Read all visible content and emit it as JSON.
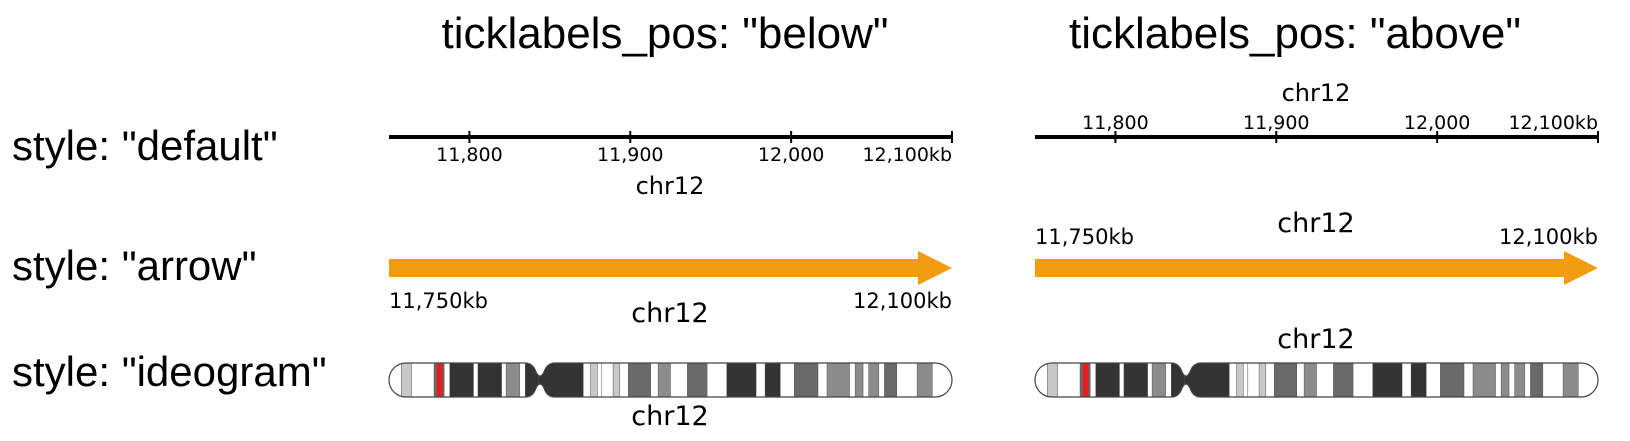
{
  "column_titles": [
    "ticklabels_pos: \"below\"",
    "ticklabels_pos: \"above\""
  ],
  "row_labels": [
    "style: \"default\"",
    "style: \"arrow\"",
    "style: \"ideogram\""
  ],
  "chrom": "chr12",
  "region": {
    "start": 11750,
    "end": 12100,
    "unit": "kb"
  },
  "ticks": [
    {
      "pos": 11800,
      "label": "11,800"
    },
    {
      "pos": 11900,
      "label": "11,900"
    },
    {
      "pos": 12000,
      "label": "12,000"
    },
    {
      "pos": 12100,
      "label": "12,100kb"
    }
  ],
  "arrow_labels": {
    "start": "11,750kb",
    "end": "12,100kb"
  },
  "colors": {
    "arrow": "#f39c12",
    "highlight": "#e02020",
    "axis": "#000000"
  },
  "ideogram": {
    "centromere": 0.265,
    "highlight_frac": 0.09,
    "bands": [
      [
        0.0,
        0.022,
        "#ffffff"
      ],
      [
        0.022,
        0.04,
        "#c8c8c8"
      ],
      [
        0.04,
        0.08,
        "#ffffff"
      ],
      [
        0.08,
        0.098,
        "#6a6a6a"
      ],
      [
        0.098,
        0.108,
        "#ffffff"
      ],
      [
        0.108,
        0.15,
        "#333333"
      ],
      [
        0.15,
        0.158,
        "#ffffff"
      ],
      [
        0.158,
        0.2,
        "#333333"
      ],
      [
        0.2,
        0.208,
        "#ffffff"
      ],
      [
        0.208,
        0.232,
        "#8c8c8c"
      ],
      [
        0.232,
        0.242,
        "#ffffff"
      ],
      [
        0.242,
        0.265,
        "#333333"
      ],
      [
        0.265,
        0.345,
        "#333333"
      ],
      [
        0.345,
        0.358,
        "#ffffff"
      ],
      [
        0.358,
        0.37,
        "#c8c8c8"
      ],
      [
        0.37,
        0.378,
        "#ffffff"
      ],
      [
        0.378,
        0.398,
        "#ffffff"
      ],
      [
        0.398,
        0.41,
        "#c8c8c8"
      ],
      [
        0.41,
        0.425,
        "#ffffff"
      ],
      [
        0.425,
        0.465,
        "#6a6a6a"
      ],
      [
        0.465,
        0.478,
        "#ffffff"
      ],
      [
        0.478,
        0.5,
        "#8c8c8c"
      ],
      [
        0.5,
        0.53,
        "#ffffff"
      ],
      [
        0.53,
        0.565,
        "#6a6a6a"
      ],
      [
        0.565,
        0.6,
        "#ffffff"
      ],
      [
        0.6,
        0.652,
        "#333333"
      ],
      [
        0.652,
        0.668,
        "#ffffff"
      ],
      [
        0.668,
        0.695,
        "#333333"
      ],
      [
        0.695,
        0.72,
        "#ffffff"
      ],
      [
        0.72,
        0.762,
        "#6a6a6a"
      ],
      [
        0.762,
        0.778,
        "#ffffff"
      ],
      [
        0.778,
        0.818,
        "#8c8c8c"
      ],
      [
        0.818,
        0.828,
        "#ffffff"
      ],
      [
        0.828,
        0.842,
        "#8c8c8c"
      ],
      [
        0.842,
        0.852,
        "#ffffff"
      ],
      [
        0.852,
        0.87,
        "#8c8c8c"
      ],
      [
        0.87,
        0.88,
        "#ffffff"
      ],
      [
        0.88,
        0.902,
        "#6a6a6a"
      ],
      [
        0.902,
        0.938,
        "#ffffff"
      ],
      [
        0.938,
        0.965,
        "#8c8c8c"
      ],
      [
        0.965,
        1.0,
        "#ffffff"
      ]
    ]
  }
}
